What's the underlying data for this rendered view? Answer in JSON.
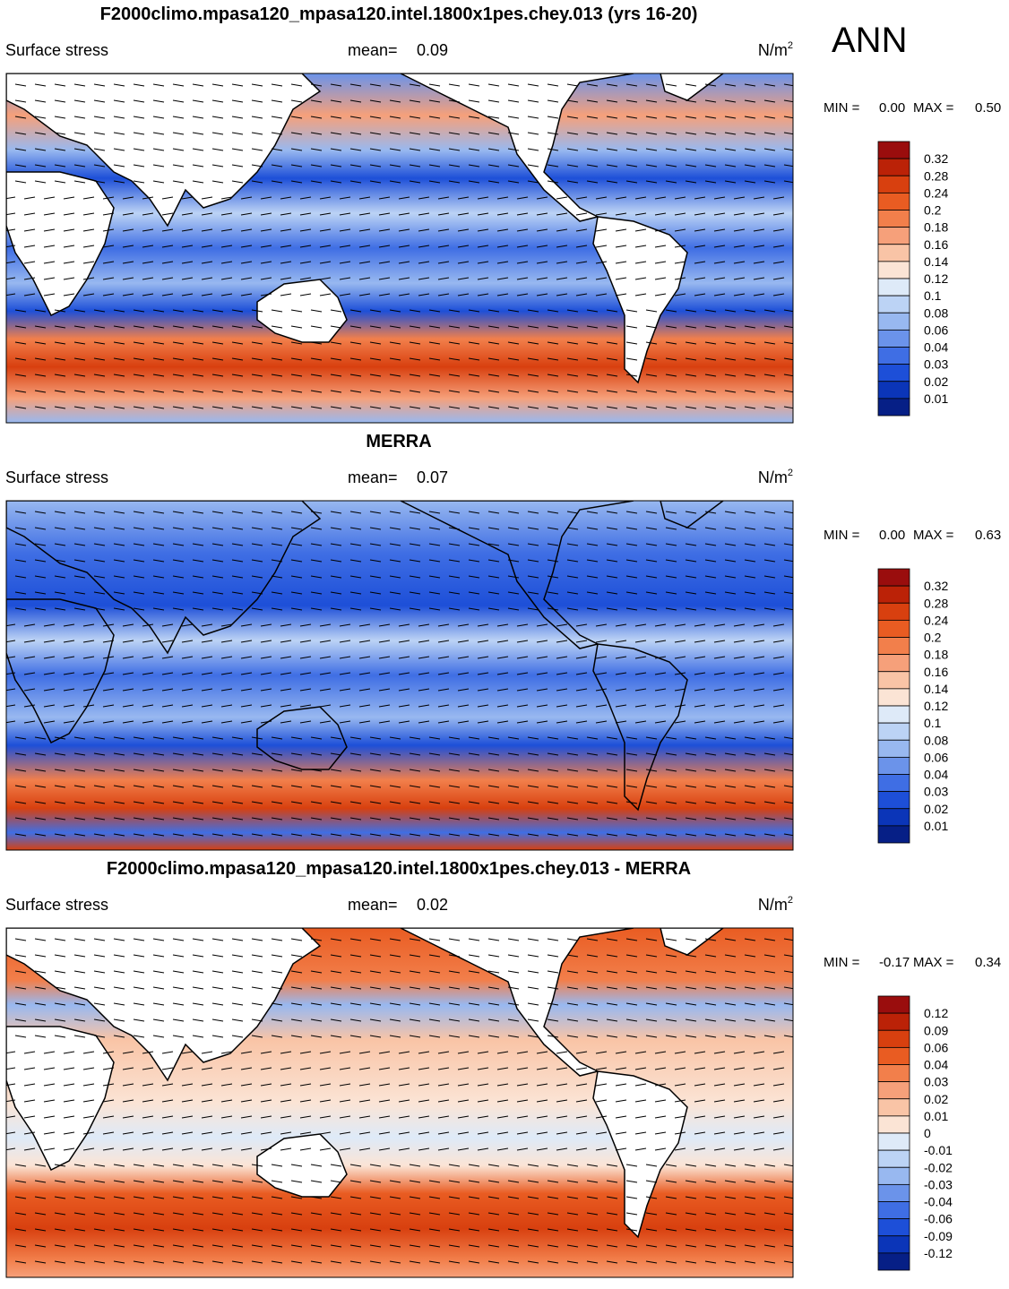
{
  "season": "ANN",
  "panels": [
    {
      "title": "F2000climo.mpasa120_mpasa120.intel.1800x1pes.chey.013 (yrs 16-20)",
      "field": "Surface stress",
      "mean_label": "mean=",
      "mean": "0.09",
      "units": "N/m",
      "units_sup": "2",
      "min_label": "MIN =",
      "min": "0.00",
      "max_label": "MAX =",
      "max": "0.50",
      "colorbar": {
        "labels": [
          "0.32",
          "0.28",
          "0.24",
          "0.2",
          "0.18",
          "0.16",
          "0.14",
          "0.12",
          "0.1",
          "0.08",
          "0.06",
          "0.04",
          "0.03",
          "0.02",
          "0.01"
        ],
        "colors": [
          "#9a0d0d",
          "#bb2207",
          "#d8400f",
          "#e95c22",
          "#f27f4b",
          "#f6a07a",
          "#f9c4a6",
          "#fbe4d5",
          "#deeaf8",
          "#bcd3f5",
          "#98b8f0",
          "#6b93ea",
          "#3f6ee4",
          "#1d4fd8",
          "#0b35b8",
          "#061f86"
        ]
      }
    },
    {
      "title": "MERRA",
      "field": "Surface stress",
      "mean_label": "mean=",
      "mean": "0.07",
      "units": "N/m",
      "units_sup": "2",
      "min_label": "MIN =",
      "min": "0.00",
      "max_label": "MAX =",
      "max": "0.63",
      "colorbar": {
        "labels": [
          "0.32",
          "0.28",
          "0.24",
          "0.2",
          "0.18",
          "0.16",
          "0.14",
          "0.12",
          "0.1",
          "0.08",
          "0.06",
          "0.04",
          "0.03",
          "0.02",
          "0.01"
        ],
        "colors": [
          "#9a0d0d",
          "#bb2207",
          "#d8400f",
          "#e95c22",
          "#f27f4b",
          "#f6a07a",
          "#f9c4a6",
          "#fbe4d5",
          "#deeaf8",
          "#bcd3f5",
          "#98b8f0",
          "#6b93ea",
          "#3f6ee4",
          "#1d4fd8",
          "#0b35b8",
          "#061f86"
        ]
      }
    },
    {
      "title": "F2000climo.mpasa120_mpasa120.intel.1800x1pes.chey.013 - MERRA",
      "field": "Surface stress",
      "mean_label": "mean=",
      "mean": "0.02",
      "units": "N/m",
      "units_sup": "2",
      "min_label": "MIN =",
      "min": "-0.17",
      "max_label": "MAX =",
      "max": "0.34",
      "colorbar": {
        "labels": [
          "0.12",
          "0.09",
          "0.06",
          "0.04",
          "0.03",
          "0.02",
          "0.01",
          "0",
          "-0.01",
          "-0.02",
          "-0.03",
          "-0.04",
          "-0.06",
          "-0.09",
          "-0.12"
        ],
        "colors": [
          "#9a0d0d",
          "#bb2207",
          "#d8400f",
          "#e95c22",
          "#f27f4b",
          "#f6a07a",
          "#f9c4a6",
          "#fbe4d5",
          "#deeaf8",
          "#bcd3f5",
          "#98b8f0",
          "#6b93ea",
          "#3f6ee4",
          "#1d4fd8",
          "#0b35b8",
          "#061f86"
        ]
      }
    }
  ]
}
